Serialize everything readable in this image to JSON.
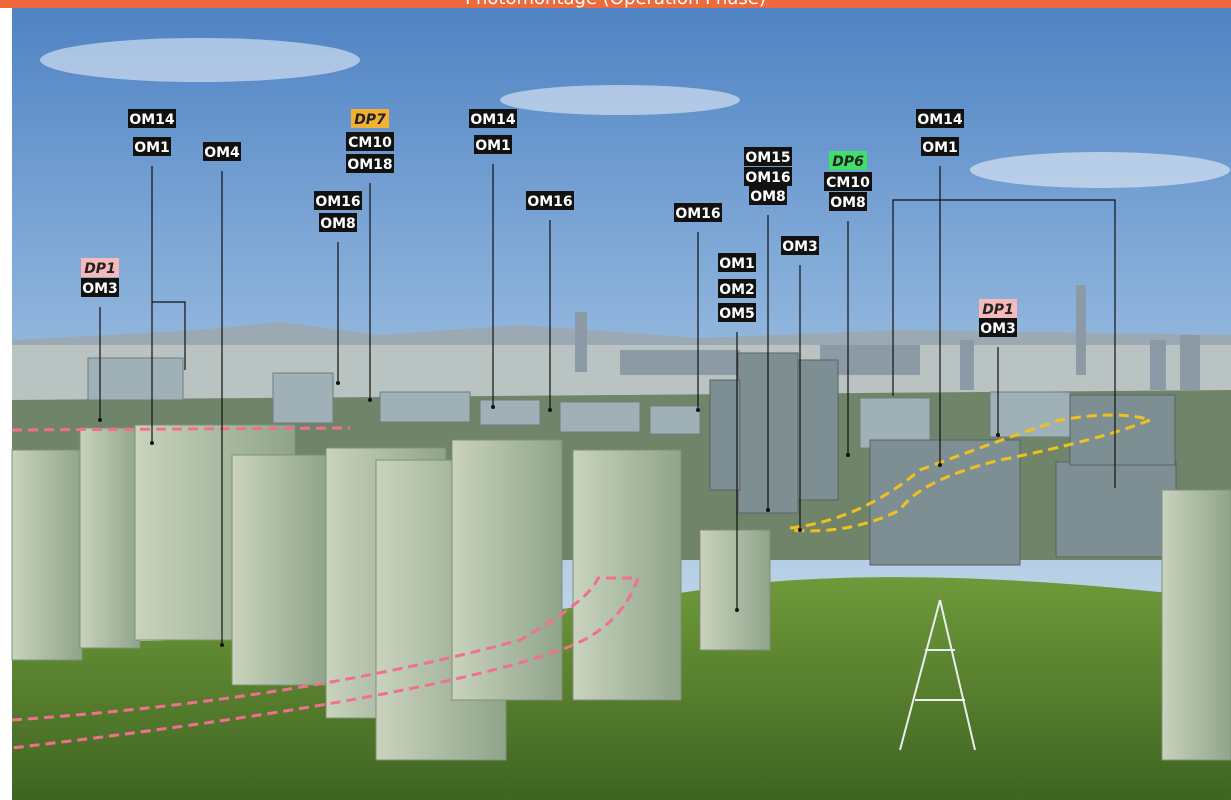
{
  "header": {
    "title": "Photomontage (Operation Phase)"
  },
  "labels": [
    {
      "items": [
        {
          "text": "OM14"
        },
        {
          "text": "OM1"
        }
      ]
    },
    {
      "items": [
        {
          "text": "OM4"
        }
      ]
    },
    {
      "items": [
        {
          "text": "DP7",
          "color": "#f4b030"
        },
        {
          "text": "CM10"
        },
        {
          "text": "OM18"
        }
      ]
    },
    {
      "items": [
        {
          "text": "OM16"
        },
        {
          "text": "OM8"
        }
      ]
    },
    {
      "items": [
        {
          "text": "OM14"
        },
        {
          "text": "OM1"
        }
      ]
    },
    {
      "items": [
        {
          "text": "OM16"
        }
      ]
    },
    {
      "items": [
        {
          "text": "OM16"
        }
      ]
    },
    {
      "items": [
        {
          "text": "DP1",
          "color": "#f7b9b9"
        },
        {
          "text": "OM3"
        }
      ]
    },
    {
      "items": [
        {
          "text": "OM15"
        },
        {
          "text": "OM16"
        },
        {
          "text": "OM8"
        }
      ]
    },
    {
      "items": [
        {
          "text": "DP6",
          "color": "#3ee06a"
        },
        {
          "text": "CM10"
        },
        {
          "text": "OM8"
        }
      ]
    },
    {
      "items": [
        {
          "text": "OM14"
        },
        {
          "text": "OM1"
        }
      ]
    },
    {
      "items": [
        {
          "text": "OM3"
        }
      ]
    },
    {
      "items": [
        {
          "text": "OM1"
        },
        {
          "text": "OM2"
        },
        {
          "text": "OM5"
        }
      ]
    },
    {
      "items": [
        {
          "text": "DP1",
          "color": "#f7b9b9"
        },
        {
          "text": "OM3"
        }
      ]
    }
  ]
}
